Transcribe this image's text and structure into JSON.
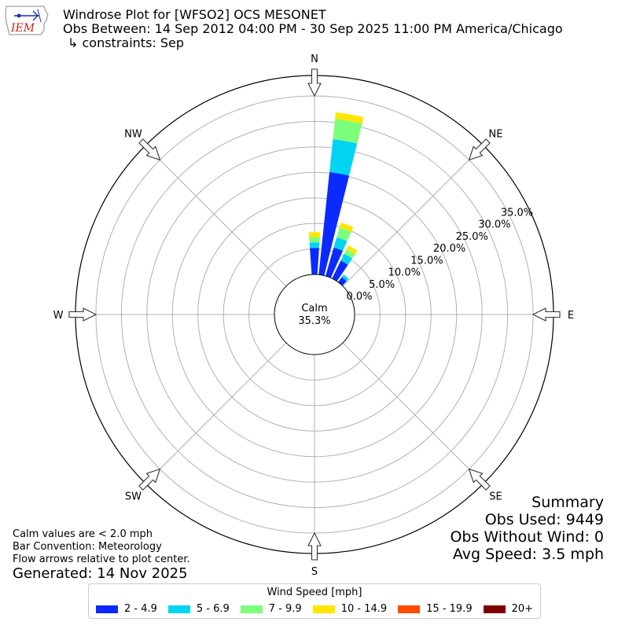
{
  "header": {
    "title": "Windrose Plot for [WFSO2] OCS MESONET",
    "subtitle": "Obs Between: 14 Sep 2012 04:00 PM - 30 Sep 2025 11:00 PM America/Chicago",
    "constraints": "↳ constraints: Sep"
  },
  "logo": {
    "text": "IEM",
    "color": "#cc2222",
    "accent": "#1a2fb0"
  },
  "notes": {
    "line1": "Calm values are < 2.0 mph",
    "line2": "Bar Convention: Meteorology",
    "line3": "Flow arrows relative to plot center.",
    "generated": "Generated: 14 Nov 2025"
  },
  "summary": {
    "title": "Summary",
    "obs_used": "Obs Used: 9449",
    "obs_without_wind": "Obs Without Wind: 0",
    "avg_speed": "Avg Speed: 3.5 mph"
  },
  "legend": {
    "title": "Wind Speed [mph]",
    "items": [
      {
        "label": "2 - 4.9",
        "color": "#0a2aff"
      },
      {
        "label": "5 - 6.9",
        "color": "#00d4f0"
      },
      {
        "label": "7 - 9.9",
        "color": "#7cff7a"
      },
      {
        "label": "10 - 14.9",
        "color": "#ffe600"
      },
      {
        "label": "15 - 19.9",
        "color": "#ff4a00"
      },
      {
        "label": "20+",
        "color": "#800000"
      }
    ]
  },
  "chart_data": {
    "type": "windrose",
    "calm": {
      "label": "Calm",
      "value": "35.3%"
    },
    "direction_labels": [
      {
        "label": "N",
        "angle": 0
      },
      {
        "label": "NE",
        "angle": 45
      },
      {
        "label": "E",
        "angle": 90
      },
      {
        "label": "SE",
        "angle": 135
      },
      {
        "label": "S",
        "angle": 180
      },
      {
        "label": "SW",
        "angle": 225
      },
      {
        "label": "W",
        "angle": 270
      },
      {
        "label": "NW",
        "angle": 315
      }
    ],
    "radial_ticks": [
      "0.0%",
      "5.0%",
      "10.0%",
      "15.0%",
      "20.0%",
      "25.0%",
      "30.0%",
      "35.0%"
    ],
    "radial_max": 39,
    "speed_bins": [
      "2 - 4.9",
      "5 - 6.9",
      "7 - 9.9",
      "10 - 14.9",
      "15 - 19.9",
      "20+"
    ],
    "bars": [
      {
        "direction": 0,
        "values": [
          5.2,
          1.1,
          1.0,
          1.0,
          0,
          0
        ]
      },
      {
        "direction": 10,
        "values": [
          20.2,
          6.5,
          4.0,
          1.3,
          0,
          0
        ]
      },
      {
        "direction": 20,
        "values": [
          5.8,
          2.1,
          2.0,
          1.0,
          0,
          0
        ]
      },
      {
        "direction": 30,
        "values": [
          3.9,
          1.5,
          1.0,
          0.8,
          0,
          0
        ]
      },
      {
        "direction": 40,
        "values": [
          1.2,
          0.6,
          0,
          0,
          0,
          0
        ]
      }
    ]
  }
}
